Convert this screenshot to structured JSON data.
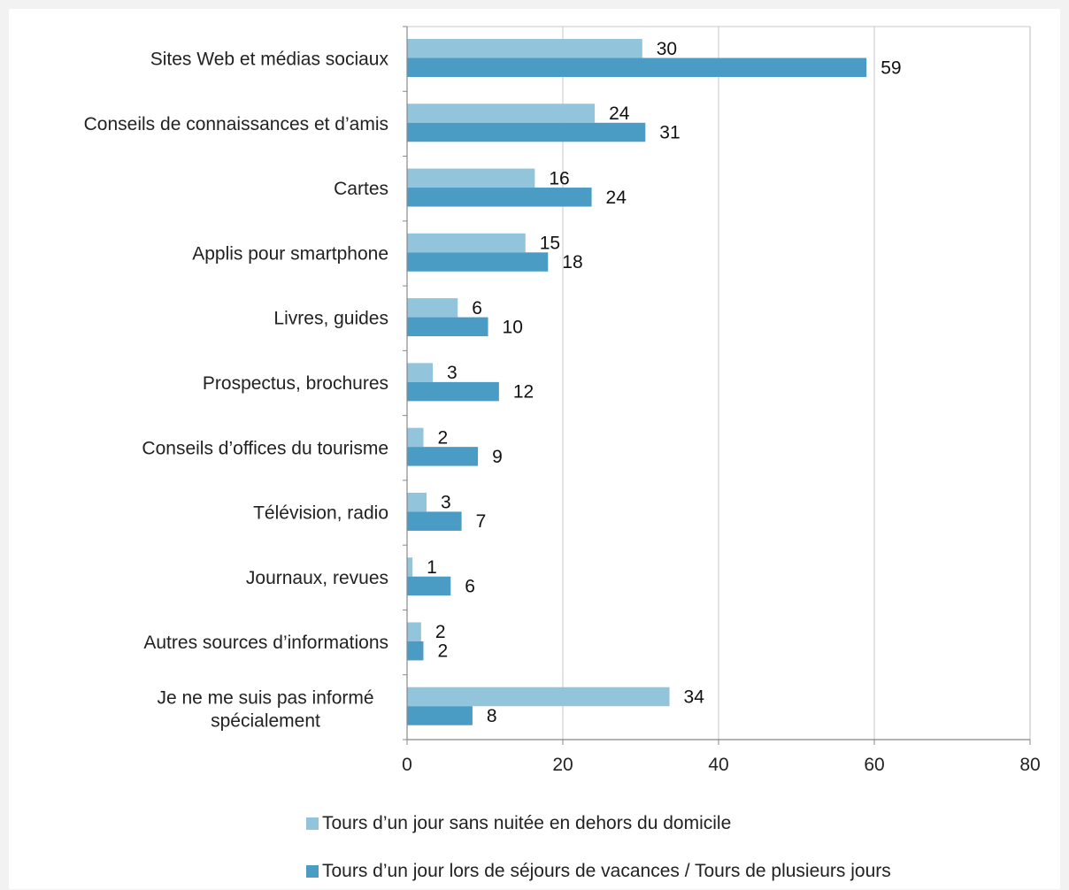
{
  "chart_data": {
    "type": "bar",
    "orientation": "horizontal",
    "categories": [
      "Sites Web et médias sociaux",
      "Conseils de connaissances et d’amis",
      "Cartes",
      "Applis pour smartphone",
      "Livres, guides",
      "Prospectus, brochures",
      "Conseils d’offices du tourisme",
      "Télévision, radio",
      "Journaux, revues",
      "Autres sources d’informations",
      "Je ne me suis pas informé spécialement"
    ],
    "category_lines": [
      [
        "Sites Web et médias sociaux"
      ],
      [
        "Conseils de connaissances et d’amis"
      ],
      [
        "Cartes"
      ],
      [
        "Applis pour smartphone"
      ],
      [
        "Livres, guides"
      ],
      [
        "Prospectus, brochures"
      ],
      [
        "Conseils d’offices du tourisme"
      ],
      [
        "Télévision, radio"
      ],
      [
        "Journaux, revues"
      ],
      [
        "Autres sources d’informations"
      ],
      [
        "Je ne me suis pas informé",
        "spécialement"
      ]
    ],
    "series": [
      {
        "name": "Tours d’un jour sans nuitée en dehors du domicile",
        "color": "#92c4dc",
        "values": [
          30.2,
          24.1,
          16.4,
          15.2,
          6.5,
          3.3,
          2.1,
          2.5,
          0.7,
          1.8,
          33.7
        ],
        "labels": [
          "30",
          "24",
          "16",
          "15",
          "6",
          "3",
          "2",
          "3",
          "1",
          "2",
          "34"
        ]
      },
      {
        "name": "Tours d’un jour lors de séjours de vacances / Tours de plusieurs jours",
        "color": "#4a9cc5",
        "values": [
          59,
          30.6,
          23.7,
          18.1,
          10.4,
          11.8,
          9.1,
          7,
          5.6,
          2.1,
          8.4
        ],
        "labels": [
          "59",
          "31",
          "24",
          "18",
          "10",
          "12",
          "9",
          "7",
          "6",
          "2",
          "8"
        ]
      }
    ],
    "xlim": [
      0,
      80
    ],
    "xticks": [
      0,
      20,
      40,
      60,
      80
    ],
    "xtick_labels": [
      "0",
      "20",
      "40",
      "60",
      "80"
    ],
    "grid": true,
    "legend_position": "bottom",
    "title": "",
    "xlabel": "",
    "ylabel": ""
  },
  "legend": {
    "item1": "Tours d’un jour sans nuitée en dehors du domicile",
    "item2": "Tours d’un jour lors de séjours de vacances / Tours de plusieurs jours"
  }
}
